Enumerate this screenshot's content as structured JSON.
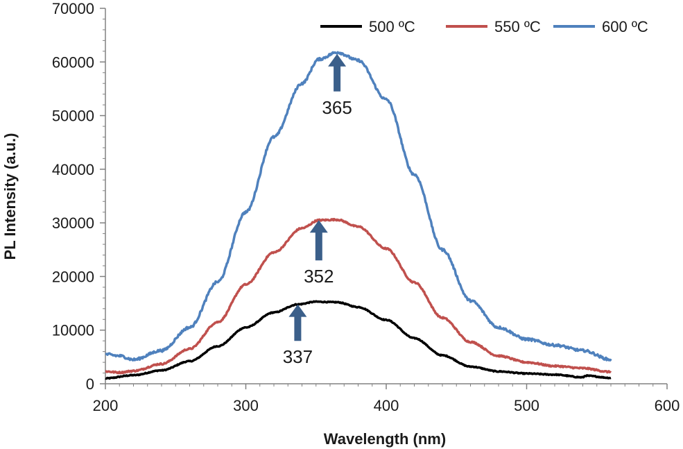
{
  "chart_data": {
    "type": "line",
    "title": "",
    "xlabel": "Wavelength (nm)",
    "ylabel": "PL Intensity (a.u.)",
    "xlim": [
      200,
      600
    ],
    "ylim": [
      0,
      70000
    ],
    "x_ticks": [
      200,
      300,
      400,
      500,
      600
    ],
    "y_ticks": [
      0,
      10000,
      20000,
      30000,
      40000,
      50000,
      60000,
      70000
    ],
    "grid": false,
    "legend_position": "top-right",
    "series": [
      {
        "name": "500 ºC",
        "color": "#000000",
        "x": [
          200,
          220,
          240,
          260,
          280,
          300,
          320,
          337,
          350,
          365,
          380,
          400,
          420,
          440,
          460,
          480,
          500,
          520,
          540,
          542,
          560
        ],
        "y": [
          1000,
          1600,
          2500,
          4200,
          7000,
          10500,
          13300,
          14800,
          15300,
          15200,
          14300,
          11900,
          8500,
          5300,
          3200,
          2300,
          1900,
          1700,
          1200,
          1500,
          1100
        ]
      },
      {
        "name": "550 ºC",
        "color": "#c0504d",
        "x": [
          200,
          210,
          220,
          240,
          260,
          280,
          300,
          320,
          340,
          352,
          365,
          380,
          400,
          420,
          440,
          460,
          480,
          500,
          520,
          540,
          560
        ],
        "y": [
          2300,
          2100,
          2400,
          3700,
          6500,
          11500,
          18500,
          24500,
          29000,
          30500,
          30600,
          29300,
          25200,
          18900,
          12300,
          7800,
          5200,
          4000,
          3300,
          2900,
          2200
        ]
      },
      {
        "name": "600 ºC",
        "color": "#4f81bd",
        "x": [
          200,
          210,
          220,
          240,
          260,
          280,
          300,
          320,
          340,
          352,
          365,
          380,
          400,
          420,
          440,
          460,
          480,
          500,
          520,
          540,
          560
        ],
        "y": [
          5500,
          5200,
          4500,
          6200,
          10500,
          19000,
          32000,
          46000,
          56000,
          60500,
          61800,
          60300,
          53000,
          39000,
          25000,
          15500,
          10500,
          8300,
          7200,
          6200,
          4500
        ]
      }
    ],
    "annotations": [
      {
        "label": "365",
        "x": 365,
        "y_tip": 61500,
        "y_base": 54500
      },
      {
        "label": "352",
        "x": 352,
        "y_tip": 30500,
        "y_base": 23000
      },
      {
        "label": "337",
        "x": 337,
        "y_tip": 14800,
        "y_base": 8000
      }
    ]
  }
}
